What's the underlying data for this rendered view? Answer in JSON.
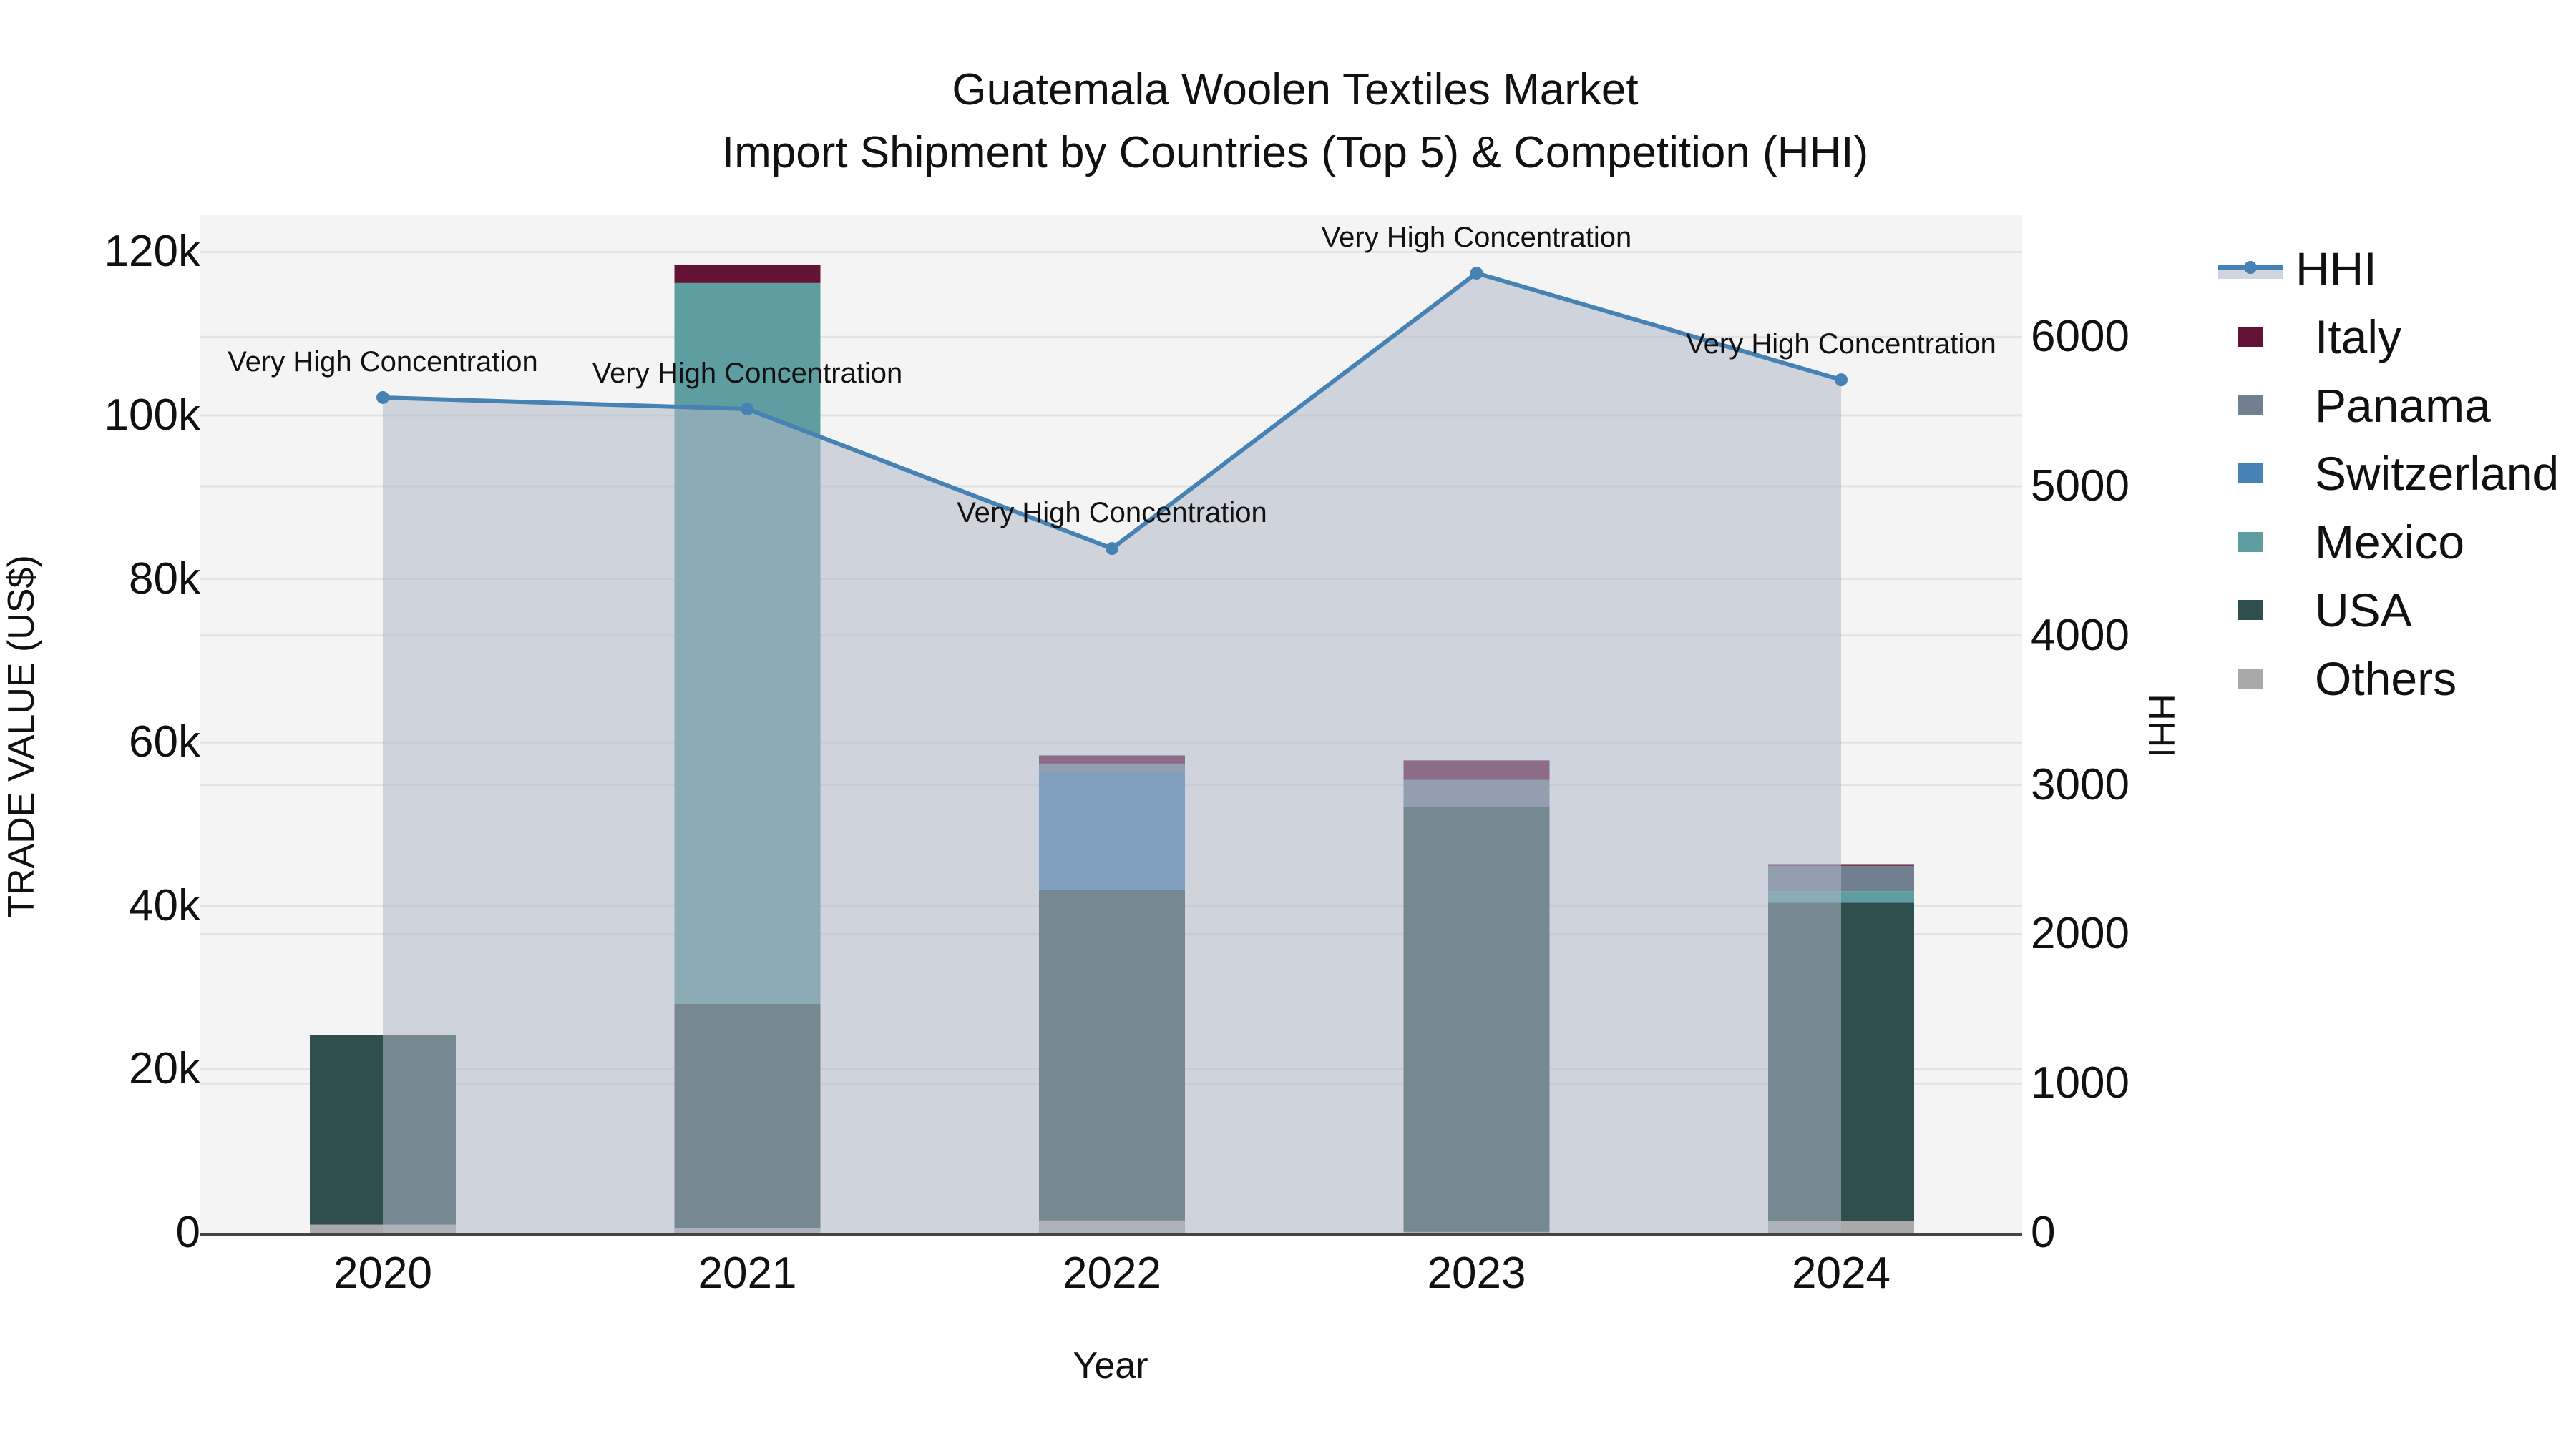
{
  "chart_data": {
    "type": "bar",
    "stacked": true,
    "title": "Guatemala Woolen Textiles Market",
    "subtitle": "Import Shipment by Countries (Top 5) & Competition (HHI)",
    "xlabel": "Year",
    "ylabel": "TRADE VALUE (US$)",
    "y2label": "HHI",
    "categories": [
      "2020",
      "2021",
      "2022",
      "2023",
      "2024"
    ],
    "ylim": [
      0,
      125000
    ],
    "y2lim": [
      0,
      6800
    ],
    "yticks": [
      "0",
      "20k",
      "40k",
      "60k",
      "80k",
      "100k",
      "120k"
    ],
    "y2ticks": [
      "0",
      "1000",
      "2000",
      "3000",
      "4000",
      "5000",
      "6000"
    ],
    "series": [
      {
        "name": "Others",
        "color": "#A9A9A9",
        "values": [
          1000,
          600,
          1500,
          100,
          1400
        ]
      },
      {
        "name": "USA",
        "color": "#2F4F4F",
        "values": [
          23200,
          27400,
          40500,
          52000,
          39000
        ]
      },
      {
        "name": "Mexico",
        "color": "#5F9EA0",
        "values": [
          0,
          88200,
          0,
          0,
          1400
        ]
      },
      {
        "name": "Switzerland",
        "color": "#4682B4",
        "values": [
          0,
          0,
          14300,
          0,
          0
        ]
      },
      {
        "name": "Panama",
        "color": "#708090",
        "values": [
          0,
          0,
          1100,
          3300,
          3100
        ]
      },
      {
        "name": "Italy",
        "color": "#631336",
        "values": [
          0,
          2200,
          1000,
          2400,
          200
        ]
      }
    ],
    "line_series": {
      "name": "HHI",
      "axis": "y2",
      "color": "#4682B4",
      "fill": "tozeroy",
      "values": [
        5594,
        5517,
        4583,
        6427,
        5713
      ],
      "annotations": [
        "Very High Concentration",
        "Very High Concentration",
        "Very High Concentration",
        "Very High Concentration",
        "Very High Concentration"
      ]
    },
    "legend_position": "right",
    "grid": true
  },
  "legend": {
    "items": [
      {
        "label": "HHI",
        "kind": "line",
        "color": "#4682B4"
      },
      {
        "label": "Italy",
        "kind": "bar",
        "color": "#631336"
      },
      {
        "label": "Panama",
        "kind": "bar",
        "color": "#708090"
      },
      {
        "label": "Switzerland",
        "kind": "bar",
        "color": "#4682B4"
      },
      {
        "label": "Mexico",
        "kind": "bar",
        "color": "#5F9EA0"
      },
      {
        "label": "USA",
        "kind": "bar",
        "color": "#2F4F4F"
      },
      {
        "label": "Others",
        "kind": "bar",
        "color": "#A9A9A9"
      }
    ]
  }
}
